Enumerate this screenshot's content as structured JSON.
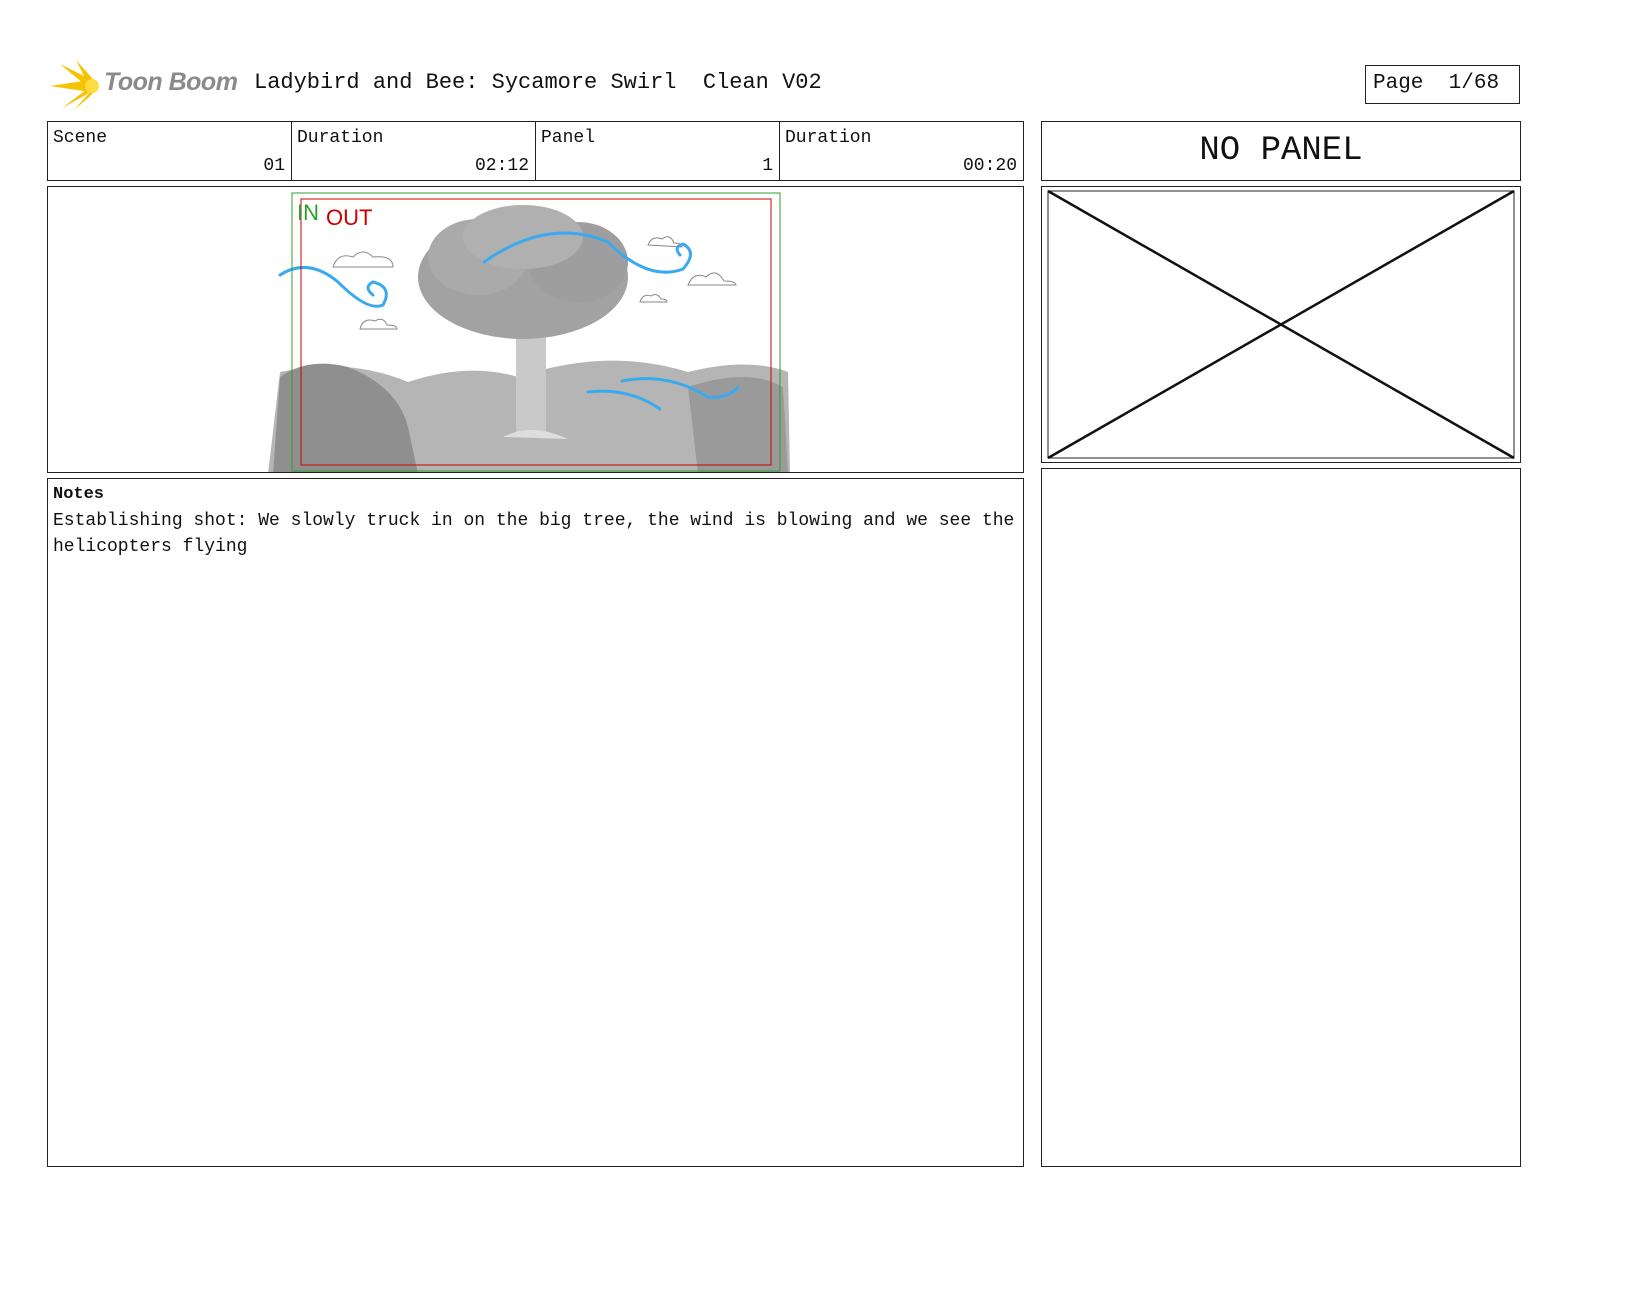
{
  "header": {
    "logo_text": "Toon Boom",
    "title": "Ladybird and Bee: Sycamore Swirl  Clean V02",
    "page_label": "Page",
    "page_value": "1/68"
  },
  "info": [
    {
      "label": "Scene",
      "value": "01"
    },
    {
      "label": "Duration",
      "value": "02:12"
    },
    {
      "label": "Panel",
      "value": "1"
    },
    {
      "label": "Duration",
      "value": "00:20"
    }
  ],
  "side_panel": {
    "label": "NO PANEL"
  },
  "frame": {
    "in_label": "IN",
    "out_label": "OUT",
    "in_color": "#2ca02c",
    "out_color": "#cc0000",
    "wind_color": "#3aaaf0"
  },
  "notes": {
    "heading": "Notes",
    "text": "Establishing shot: We slowly truck in on the big tree, the wind is blowing and we see the helicopters flying"
  }
}
